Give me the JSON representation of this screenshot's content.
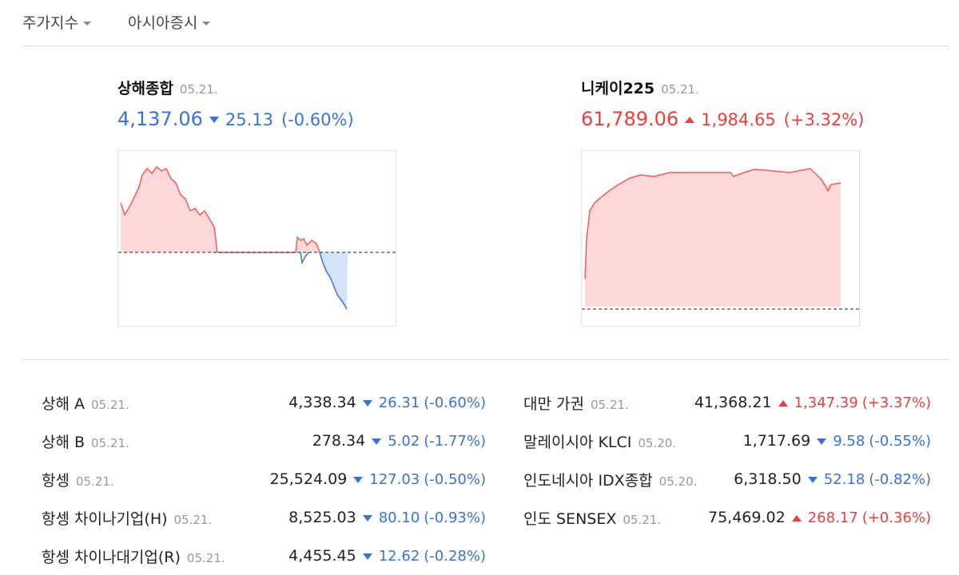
{
  "nav": {
    "tabs": [
      "주가지수",
      "아시아증시"
    ]
  },
  "cards": [
    {
      "name": "상해종합",
      "date": "05.21.",
      "value": "4,137.06",
      "change": "25.13",
      "percent": "(-0.60%)"
    },
    {
      "name": "니케이225",
      "date": "05.21.",
      "value": "61,789.06",
      "change": "1,984.65",
      "percent": "(+3.32%)"
    }
  ],
  "table": {
    "columns": [
      [
        {
          "name": "상해 A",
          "date": "05.21.",
          "value": "4,338.34",
          "change": "26.31",
          "percent": "(-0.60%)"
        },
        {
          "name": "상해 B",
          "date": "05.21.",
          "value": "278.34",
          "change": "5.02",
          "percent": "(-1.77%)"
        },
        {
          "name": "항셍",
          "date": "05.21.",
          "value": "25,524.09",
          "change": "127.03",
          "percent": "(-0.50%)"
        },
        {
          "name": "항셍 차이나기업(H)",
          "date": "05.21.",
          "value": "8,525.03",
          "change": "80.10",
          "percent": "(-0.93%)"
        },
        {
          "name": "항셍 차이나대기업(R)",
          "date": "05.21.",
          "value": "4,455.45",
          "change": "12.62",
          "percent": "(-0.28%)"
        }
      ],
      [
        {
          "name": "대만 가권",
          "date": "05.21.",
          "value": "41,368.21",
          "change": "1,347.39",
          "percent": "(+3.37%)"
        },
        {
          "name": "말레이시아 KLCI",
          "date": "05.20.",
          "value": "1,717.69",
          "change": "9.58",
          "percent": "(-0.55%)"
        },
        {
          "name": "인도네시아 IDX종합",
          "date": "05.20.",
          "value": "6,318.50",
          "change": "52.18",
          "percent": "(-0.82%)"
        },
        {
          "name": "인도 SENSEX",
          "date": "05.21.",
          "value": "75,469.02",
          "change": "268.17",
          "percent": "(+0.36%)"
        }
      ]
    ]
  }
}
